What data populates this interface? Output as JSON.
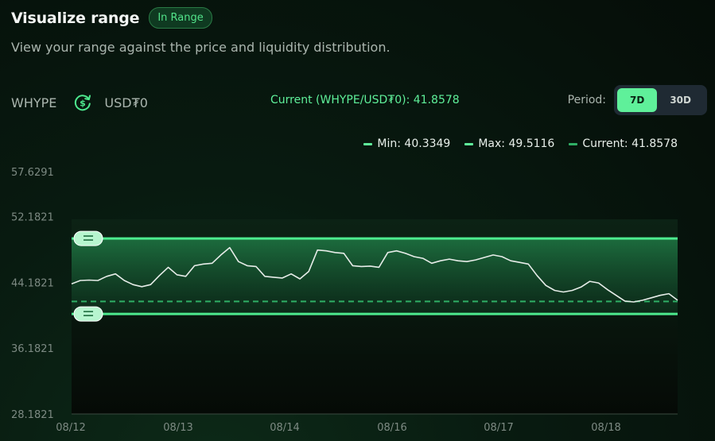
{
  "header": {
    "title": "Visualize range",
    "badge": "In Range",
    "subtitle": "View your range against the price and liquidity distribution."
  },
  "pair": {
    "base": "WHYPE",
    "quote": "USD₮0",
    "swap_icon": "swap-dollar-icon",
    "current_text": "Current (WHYPE/USD₮0): 41.8578"
  },
  "period": {
    "label": "Period:",
    "options": [
      "7D",
      "30D"
    ],
    "selected": "7D"
  },
  "legend": {
    "min": "Min: 40.3349",
    "max": "Max: 49.5116",
    "current": "Current: 41.8578"
  },
  "colors": {
    "accent": "#5ff09a",
    "range_line": "#4dea8e",
    "current_line": "#2fae65",
    "price_line": "#e6ece8"
  },
  "chart_data": {
    "type": "line",
    "y_ticks": [
      "57.6291",
      "52.1821",
      "44.1821",
      "36.1821",
      "28.1821"
    ],
    "x_ticks": [
      "08/12",
      "08/13",
      "08/14",
      "08/16",
      "08/17",
      "08/18"
    ],
    "ylim": [
      28.1821,
      57.6291
    ],
    "range_min": 40.3349,
    "range_max": 49.5116,
    "current": 41.8578,
    "series": [
      {
        "values": [
          44.0,
          44.4,
          44.45,
          44.4,
          44.9,
          45.2,
          44.4,
          43.9,
          43.65,
          43.9,
          45.0,
          46.0,
          45.1,
          44.9,
          46.2,
          46.4,
          46.5,
          47.5,
          48.4,
          46.7,
          46.2,
          46.1,
          44.9,
          44.8,
          44.7,
          45.2,
          44.6,
          45.5,
          48.1,
          48.0,
          47.8,
          47.7,
          46.2,
          46.1,
          46.15,
          46.0,
          47.8,
          48.0,
          47.7,
          47.3,
          47.1,
          46.5,
          46.8,
          47.0,
          46.8,
          46.7,
          46.9,
          47.2,
          47.5,
          47.3,
          46.8,
          46.6,
          46.4,
          45.0,
          43.8,
          43.2,
          43.0,
          43.2,
          43.6,
          44.3,
          44.1,
          43.3,
          42.6,
          41.9,
          41.8,
          42.0,
          42.3,
          42.6,
          42.8,
          42.0
        ]
      }
    ]
  }
}
